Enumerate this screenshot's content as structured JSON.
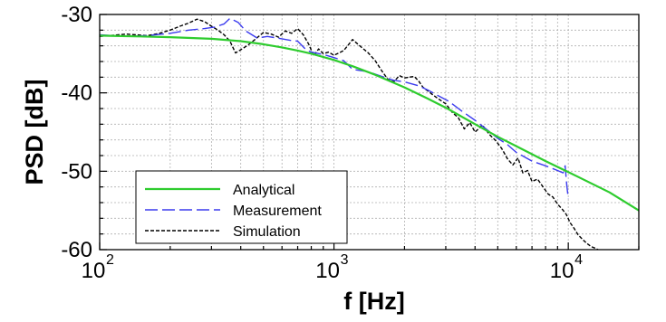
{
  "chart_data": {
    "type": "line",
    "title": "",
    "xlabel": "f [Hz]",
    "ylabel": "PSD [dB]",
    "xscale": "log",
    "xlim": [
      100,
      20000
    ],
    "ylim": [
      -60,
      -30
    ],
    "grid": true,
    "legend_position": "bottom-left",
    "x_ticks": [
      {
        "value": 100,
        "base": "10",
        "exp": "2"
      },
      {
        "value": 1000,
        "base": "10",
        "exp": "3"
      },
      {
        "value": 10000,
        "base": "10",
        "exp": "4"
      }
    ],
    "y_ticks": [
      {
        "value": -30,
        "label": "-30"
      },
      {
        "value": -40,
        "label": "-40"
      },
      {
        "value": -50,
        "label": "-50"
      },
      {
        "value": -60,
        "label": "-60"
      }
    ],
    "series": [
      {
        "name": "Analytical",
        "color": "#2ecc2e",
        "dash": "solid",
        "x": [
          100,
          150,
          200,
          300,
          400,
          500,
          600,
          700,
          800,
          1000,
          1200,
          1500,
          2000,
          2500,
          3000,
          4000,
          5000,
          6000,
          8000,
          10000,
          15000,
          20000
        ],
        "y": [
          -32.7,
          -32.8,
          -32.9,
          -33.1,
          -33.4,
          -33.8,
          -34.2,
          -34.6,
          -35.0,
          -35.8,
          -36.6,
          -37.7,
          -39.3,
          -40.7,
          -41.9,
          -44.0,
          -45.6,
          -46.8,
          -48.7,
          -50.1,
          -52.7,
          -55.0
        ]
      },
      {
        "name": "Measurement",
        "color": "#3b3bee",
        "dash": "dashed",
        "x": [
          100,
          130,
          160,
          200,
          240,
          280,
          310,
          340,
          360,
          390,
          420,
          470,
          520,
          600,
          650,
          700,
          760,
          800,
          900,
          1000,
          1100,
          1200,
          1400,
          1600,
          1800,
          2000,
          2300,
          2500,
          2800,
          3100,
          3500,
          4000,
          4500,
          5000,
          5500,
          6000,
          7000,
          8000,
          9000,
          9500,
          9700,
          9850,
          10000
        ],
        "y": [
          -32.6,
          -32.8,
          -32.7,
          -32.4,
          -32.0,
          -31.8,
          -31.6,
          -31.2,
          -30.5,
          -31.0,
          -32.1,
          -33.0,
          -32.8,
          -33.1,
          -33.3,
          -33.4,
          -34.5,
          -34.8,
          -35.1,
          -35.5,
          -35.9,
          -37.0,
          -37.3,
          -37.9,
          -38.4,
          -38.6,
          -39.1,
          -39.6,
          -40.4,
          -41.1,
          -42.3,
          -43.5,
          -44.7,
          -45.8,
          -46.6,
          -47.6,
          -48.7,
          -49.3,
          -49.9,
          -50.2,
          -49.3,
          -51.8,
          -53.5
        ]
      },
      {
        "name": "Simulation",
        "color": "#000000",
        "dash": "dotted",
        "x": [
          100,
          130,
          160,
          180,
          200,
          220,
          240,
          260,
          280,
          300,
          320,
          340,
          360,
          380,
          400,
          430,
          460,
          500,
          540,
          580,
          620,
          660,
          700,
          740,
          780,
          820,
          860,
          900,
          950,
          1000,
          1050,
          1100,
          1150,
          1200,
          1300,
          1400,
          1500,
          1600,
          1700,
          1800,
          1900,
          2000,
          2100,
          2200,
          2300,
          2400,
          2500,
          2600,
          2800,
          3000,
          3200,
          3400,
          3600,
          3800,
          4000,
          4300,
          4600,
          4900,
          5200,
          5500,
          5800,
          6100,
          6400,
          6700,
          7000,
          7400,
          7800,
          8200,
          8600,
          9000,
          9400,
          9800,
          10200,
          10600,
          11000,
          11500,
          12000,
          12500,
          13000,
          13400
        ],
        "y": [
          -32.8,
          -32.5,
          -32.7,
          -32.4,
          -32.0,
          -31.5,
          -31.1,
          -30.6,
          -30.9,
          -31.5,
          -32.0,
          -32.6,
          -33.4,
          -34.9,
          -34.5,
          -33.9,
          -33.2,
          -32.3,
          -32.5,
          -32.9,
          -32.1,
          -32.4,
          -31.8,
          -32.6,
          -33.8,
          -35.3,
          -34.4,
          -35.0,
          -34.8,
          -35.2,
          -34.9,
          -34.6,
          -33.9,
          -33.2,
          -34.1,
          -34.9,
          -35.9,
          -37.2,
          -38.3,
          -38.6,
          -37.8,
          -38.1,
          -38.0,
          -37.9,
          -38.5,
          -39.3,
          -39.7,
          -40.1,
          -40.8,
          -41.4,
          -42.5,
          -43.2,
          -44.6,
          -43.8,
          -45.0,
          -44.1,
          -45.3,
          -46.1,
          -47.1,
          -48.4,
          -49.2,
          -48.3,
          -50.2,
          -49.9,
          -51.3,
          -51.0,
          -52.0,
          -52.9,
          -53.3,
          -54.2,
          -54.8,
          -55.5,
          -56.6,
          -57.3,
          -58.1,
          -58.7,
          -59.2,
          -59.6,
          -59.8,
          -60.0
        ]
      }
    ]
  }
}
